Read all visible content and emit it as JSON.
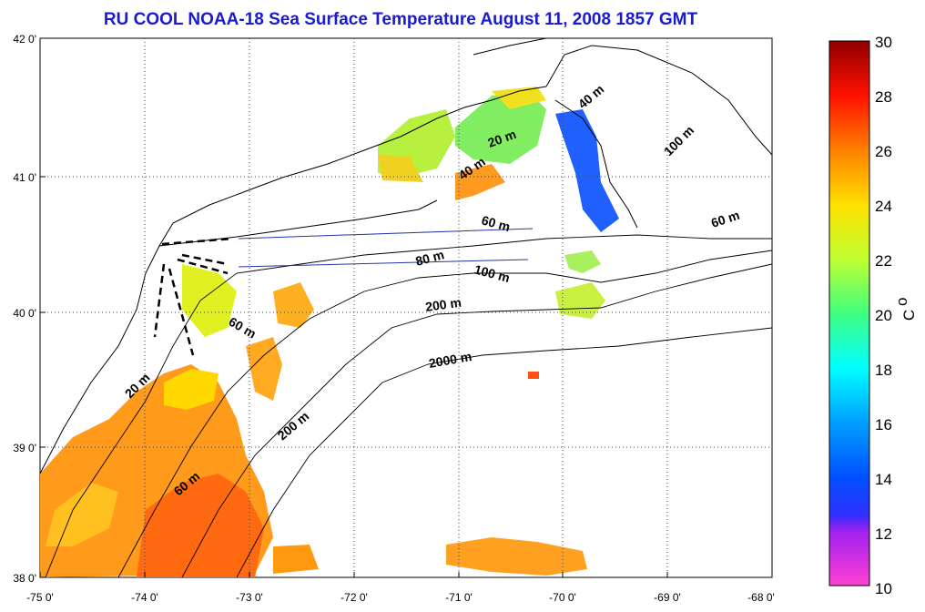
{
  "title": "RU COOL  NOAA-18 Sea Surface Temperature August 11, 2008 1857 GMT",
  "x_ticks": [
    "-75 0'",
    "-74 0'",
    "-73 0'",
    "-72 0'",
    "-71 0'",
    "-70 0'",
    "-69 0'",
    "-68 0'"
  ],
  "y_ticks": [
    "42 0'",
    "41 0'",
    "40 0'",
    "39 0'",
    "38 0'"
  ],
  "colorbar": {
    "ticks": [
      "30",
      "28",
      "26",
      "24",
      "22",
      "20",
      "18",
      "16",
      "14",
      "12",
      "10"
    ],
    "unit": "C",
    "unit_superscript": "o",
    "range": [
      10,
      30
    ]
  },
  "depth_labels": [
    "40 m",
    "20 m",
    "40 m",
    "100 m",
    "60 m",
    "60 m",
    "80 m",
    "100 m",
    "200 m",
    "60 m",
    "2000 m",
    "20 m",
    "200 m",
    "60 m"
  ],
  "colors": {
    "title": "#1a1ad0",
    "transect_lines": "#2233aa",
    "land_isobaths": "#000000"
  }
}
